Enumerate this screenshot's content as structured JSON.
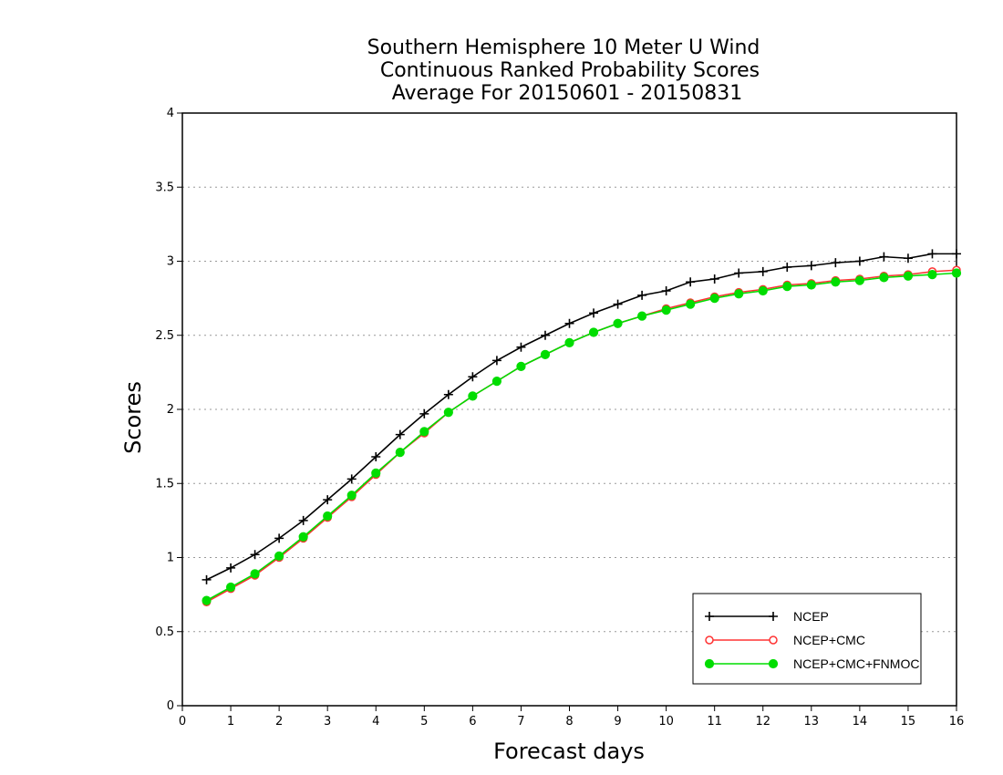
{
  "chart_data": {
    "type": "line",
    "title_lines": [
      "Southern Hemisphere 10 Meter U Wind",
      "Continuous Ranked Probability Scores",
      "Average For 20150601 - 20150831"
    ],
    "xlabel": "Forecast days",
    "ylabel": "Scores",
    "xlim": [
      0,
      16
    ],
    "ylim": [
      0,
      4
    ],
    "xticks": [
      0,
      1,
      2,
      3,
      4,
      5,
      6,
      7,
      8,
      9,
      10,
      11,
      12,
      13,
      14,
      15,
      16
    ],
    "yticks": [
      0,
      0.5,
      1,
      1.5,
      2,
      2.5,
      3,
      3.5,
      4
    ],
    "ytick_labels": [
      "0",
      "0.5",
      "1",
      "1.5",
      "2",
      "2.5",
      "3",
      "3.5",
      "4"
    ],
    "grid": "horizontal dotted",
    "legend_position": "bottom-right",
    "x": [
      0.5,
      1,
      1.5,
      2,
      2.5,
      3,
      3.5,
      4,
      4.5,
      5,
      5.5,
      6,
      6.5,
      7,
      7.5,
      8,
      8.5,
      9,
      9.5,
      10,
      10.5,
      11,
      11.5,
      12,
      12.5,
      13,
      13.5,
      14,
      14.5,
      15,
      15.5,
      16
    ],
    "series": [
      {
        "name": "NCEP",
        "color": "#000000",
        "marker": "plus",
        "values": [
          0.85,
          0.93,
          1.02,
          1.13,
          1.25,
          1.39,
          1.53,
          1.68,
          1.83,
          1.97,
          2.1,
          2.22,
          2.33,
          2.42,
          2.5,
          2.58,
          2.65,
          2.71,
          2.77,
          2.8,
          2.86,
          2.88,
          2.92,
          2.93,
          2.96,
          2.97,
          2.99,
          3.0,
          3.03,
          3.02,
          3.05,
          3.05
        ]
      },
      {
        "name": "NCEP+CMC",
        "color": "#ff3333",
        "marker": "open-circle",
        "values": [
          0.7,
          0.79,
          0.88,
          1.0,
          1.13,
          1.27,
          1.41,
          1.56,
          1.71,
          1.84,
          1.98,
          2.09,
          2.19,
          2.29,
          2.37,
          2.45,
          2.52,
          2.58,
          2.63,
          2.68,
          2.72,
          2.76,
          2.79,
          2.81,
          2.84,
          2.85,
          2.87,
          2.88,
          2.9,
          2.91,
          2.93,
          2.94
        ]
      },
      {
        "name": "NCEP+CMC+FNMOC",
        "color": "#00dd00",
        "marker": "filled-circle",
        "values": [
          0.71,
          0.8,
          0.89,
          1.01,
          1.14,
          1.28,
          1.42,
          1.57,
          1.71,
          1.85,
          1.98,
          2.09,
          2.19,
          2.29,
          2.37,
          2.45,
          2.52,
          2.58,
          2.63,
          2.67,
          2.71,
          2.75,
          2.78,
          2.8,
          2.83,
          2.84,
          2.86,
          2.87,
          2.89,
          2.9,
          2.91,
          2.92
        ]
      }
    ]
  }
}
